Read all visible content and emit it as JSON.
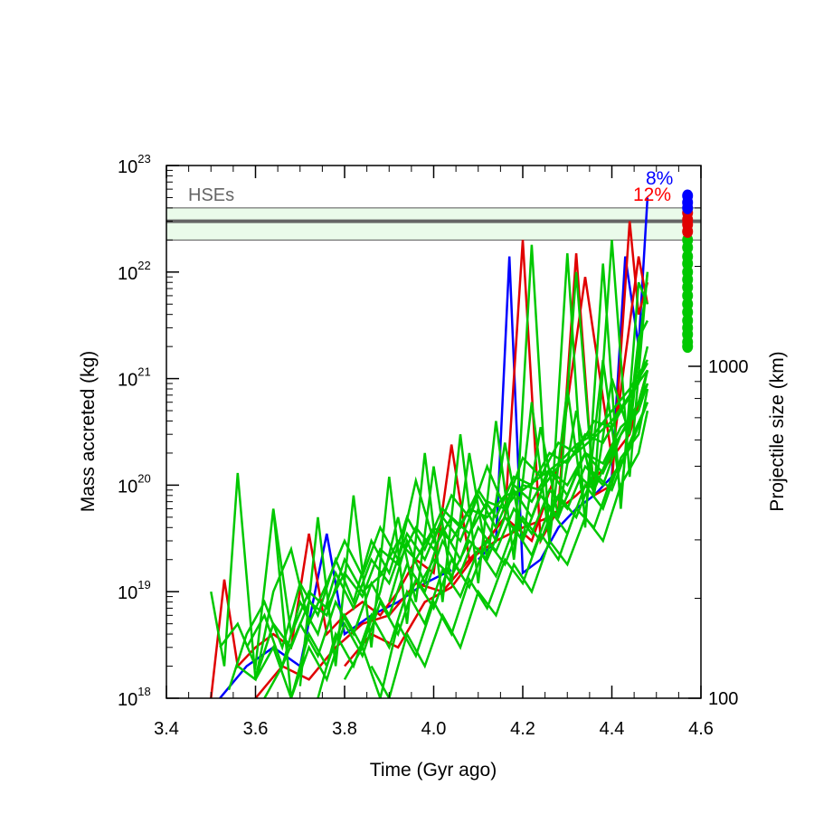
{
  "chart_data": {
    "type": "line",
    "title": "",
    "xlabel": "Time (Gyr ago)",
    "ylabel": "Mass accreted (kg)",
    "y2label": "Projectile size (km)",
    "xlim": [
      3.4,
      4.6
    ],
    "ylim": [
      1e+18,
      1e+23
    ],
    "yscale": "log",
    "x_ticks": [
      "3.4",
      "3.6",
      "3.8",
      "4.0",
      "4.2",
      "4.4",
      "4.6"
    ],
    "y_ticks": [
      {
        "base": "10",
        "exp": "18"
      },
      {
        "base": "10",
        "exp": "19"
      },
      {
        "base": "10",
        "exp": "20"
      },
      {
        "base": "10",
        "exp": "21"
      },
      {
        "base": "10",
        "exp": "22"
      },
      {
        "base": "10",
        "exp": "23"
      }
    ],
    "y2_ticks": [
      "100",
      "1000"
    ],
    "grid": false,
    "hse_band": {
      "label": "HSEs",
      "value": 3e+22,
      "low": 2e+22,
      "high": 4e+22,
      "line_color": "#666666",
      "fill_color": "#eafbea"
    },
    "annotations": [
      {
        "text": "8%",
        "color": "#0000ff"
      },
      {
        "text": "12%",
        "color": "#ff0000"
      }
    ],
    "series_colors": {
      "blue": "#0000ff",
      "red": "#e00000",
      "green": "#00c800"
    },
    "end_markers": {
      "x": 4.57,
      "blue": [
        5.2e+22,
        4.5e+22,
        4e+22
      ],
      "red": [
        3.6e+22,
        3.1e+22,
        2.8e+22,
        2.4e+22
      ],
      "green": [
        2e+22,
        1.7e+22,
        1.4e+22,
        1.2e+22,
        1e+22,
        8.5e+21,
        7.2e+21,
        6e+21,
        5e+21,
        4.2e+21,
        3.5e+21,
        3e+21,
        2.6e+21,
        2.2e+21,
        2e+21
      ]
    },
    "series": [
      {
        "group": "blue",
        "x": [
          4.1,
          4.14,
          4.17,
          4.2,
          4.24,
          4.28,
          4.32,
          4.36,
          4.4,
          4.43,
          4.46,
          4.48
        ],
        "y": [
          2e+19,
          3e+19,
          1.4e+22,
          1.5e+19,
          2e+19,
          4e+19,
          6e+19,
          8e+19,
          1.2e+20,
          1.4e+22,
          2e+21,
          5e+22
        ]
      },
      {
        "group": "blue",
        "x": [
          3.52,
          3.58,
          3.64,
          3.7,
          3.76,
          3.8,
          3.86,
          3.92,
          3.98,
          4.04
        ],
        "y": [
          1e+18,
          2e+18,
          3e+18,
          2e+18,
          3.5e+19,
          4e+18,
          6e+18,
          8e+18,
          1.2e+19,
          1.6e+19
        ]
      },
      {
        "group": "red",
        "x": [
          3.5,
          3.53,
          3.56,
          3.6,
          3.64,
          3.68,
          3.72,
          3.76,
          3.8,
          3.84,
          3.88,
          3.92,
          3.96,
          4.0,
          4.04,
          4.08,
          4.12,
          4.16,
          4.2,
          4.24,
          4.28,
          4.32,
          4.36,
          4.4,
          4.44,
          4.46,
          4.48
        ],
        "y": [
          1e+18,
          1.3e+19,
          2e+18,
          3e+18,
          4e+18,
          3e+18,
          3.5e+19,
          4e+18,
          6e+18,
          8e+18,
          6e+18,
          1e+19,
          2e+19,
          1.5e+19,
          2.4e+20,
          2e+19,
          3e+19,
          5e+19,
          2e+22,
          3e+19,
          6e+19,
          1.5e+22,
          8e+19,
          1e+20,
          3e+22,
          4e+21,
          8e+21
        ]
      },
      {
        "group": "red",
        "x": [
          3.6,
          3.66,
          3.72,
          3.78,
          3.84,
          3.9,
          3.96,
          4.02,
          4.08,
          4.14,
          4.2,
          4.26,
          4.32,
          4.38,
          4.44,
          4.48
        ],
        "y": [
          1e+18,
          2e+18,
          1.5e+18,
          3e+18,
          5e+18,
          6e+18,
          1.2e+19,
          1e+19,
          2e+19,
          3e+19,
          4e+19,
          5e+19,
          8e+19,
          1.4e+20,
          3e+20,
          1.2e+21
        ]
      },
      {
        "group": "red",
        "x": [
          3.8,
          3.86,
          3.92,
          3.98,
          4.04,
          4.1,
          4.16,
          4.22,
          4.28,
          4.34,
          4.4,
          4.46,
          4.48
        ],
        "y": [
          2e+18,
          4e+18,
          3e+18,
          8e+18,
          1.1e+19,
          2.4e+19,
          5e+19,
          3e+19,
          1.5e+20,
          9e+21,
          1.8e+20,
          1.4e+22,
          5e+21
        ]
      },
      {
        "group": "green",
        "x": [
          3.5,
          3.53,
          3.56,
          3.6,
          3.64,
          3.68,
          3.72,
          3.76,
          3.8,
          3.84,
          3.88,
          3.92,
          3.96,
          4.0,
          4.04,
          4.08,
          4.12,
          4.16,
          4.2,
          4.24,
          4.28,
          4.32,
          4.36,
          4.4,
          4.44,
          4.48
        ],
        "y": [
          1e+19,
          2e+18,
          1.3e+20,
          1.5e+18,
          5e+18,
          3e+18,
          8e+18,
          6e+18,
          2e+19,
          1e+19,
          1.4e+19,
          3e+19,
          2e+19,
          4e+19,
          3e+19,
          6e+19,
          5e+19,
          8e+19,
          9e+19,
          1.2e+20,
          1.6e+20,
          2.4e+20,
          3e+20,
          5e+20,
          8e+20,
          1.5e+21
        ]
      },
      {
        "group": "green",
        "x": [
          3.52,
          3.56,
          3.6,
          3.64,
          3.68,
          3.72,
          3.76,
          3.8,
          3.84,
          3.88,
          3.92,
          3.96,
          4.0,
          4.04,
          4.08,
          4.12,
          4.16,
          4.2,
          4.24,
          4.28,
          4.32,
          4.36,
          4.4,
          4.44,
          4.48
        ],
        "y": [
          3e+18,
          5e+18,
          2e+18,
          6e+19,
          4e+18,
          1e+19,
          7e+18,
          1.5e+19,
          9e+18,
          2.5e+19,
          1.8e+19,
          4e+19,
          2.5e+19,
          5e+19,
          3.5e+19,
          7e+19,
          6e+19,
          1e+20,
          9e+19,
          1.5e+20,
          2e+20,
          2.8e+20,
          4e+20,
          7e+20,
          1.2e+21
        ]
      },
      {
        "group": "green",
        "x": [
          3.54,
          3.58,
          3.62,
          3.66,
          3.7,
          3.74,
          3.78,
          3.82,
          3.86,
          3.9,
          3.94,
          3.98,
          4.02,
          4.06,
          4.1,
          4.14,
          4.18,
          4.22,
          4.26,
          4.3,
          4.34,
          4.38,
          4.42,
          4.46,
          4.48
        ],
        "y": [
          1.2e+18,
          4e+18,
          8e+18,
          3e+18,
          1.2e+19,
          6e+18,
          2e+19,
          8e+18,
          3e+19,
          1.5e+19,
          5e+19,
          2.5e+19,
          6e+19,
          4e+19,
          9e+19,
          5e+19,
          1.2e+20,
          1e+20,
          2e+20,
          1.6e+20,
          3e+20,
          2.5e+20,
          5e+20,
          9e+20,
          2e+21
        ]
      },
      {
        "group": "green",
        "x": [
          3.56,
          3.6,
          3.64,
          3.68,
          3.72,
          3.76,
          3.8,
          3.84,
          3.88,
          3.92,
          3.96,
          4.0,
          4.04,
          4.08,
          4.12,
          4.16,
          4.2,
          4.24,
          4.28,
          4.32,
          4.36,
          4.4,
          4.44,
          4.48
        ],
        "y": [
          2e+18,
          1.5e+18,
          1e+19,
          2.5e+19,
          5e+18,
          1.2e+19,
          3e+19,
          1.4e+19,
          4e+19,
          2e+19,
          1.1e+20,
          3e+19,
          8e+19,
          5e+19,
          1.5e+20,
          6e+19,
          1.8e+20,
          1.2e+20,
          2.5e+20,
          2e+20,
          4e+20,
          3.5e+20,
          7e+20,
          1.4e+21
        ]
      },
      {
        "group": "green",
        "x": [
          3.58,
          3.62,
          3.66,
          3.7,
          3.74,
          3.78,
          3.82,
          3.86,
          3.9,
          3.94,
          3.98,
          4.02,
          4.06,
          4.1,
          4.14,
          4.18,
          4.22,
          4.26,
          4.3,
          4.34,
          4.38,
          4.42,
          4.46,
          4.48
        ],
        "y": [
          3e+18,
          6e+18,
          2e+18,
          8e+18,
          4e+18,
          1.5e+19,
          7e+18,
          2e+19,
          1.2e+19,
          3.5e+19,
          2e+19,
          5e+19,
          3e+19,
          8e+19,
          4e+19,
          1e+20,
          7e+19,
          1.4e+20,
          1e+20,
          2e+20,
          1.6e+20,
          3.5e+20,
          5e+20,
          9e+20
        ]
      },
      {
        "group": "green",
        "x": [
          3.6,
          3.64,
          3.68,
          3.72,
          3.76,
          3.8,
          3.84,
          3.88,
          3.92,
          3.96,
          4.0,
          4.04,
          4.08,
          4.12,
          4.16,
          4.2,
          4.24,
          4.28,
          4.32,
          4.36,
          4.4,
          4.44,
          4.48
        ],
        "y": [
          1.5e+18,
          3e+18,
          1e+18,
          4e+18,
          2e+18,
          6e+18,
          3e+18,
          1e+19,
          5e+19,
          8e+18,
          1.5e+20,
          1.2e+19,
          2e+20,
          2e+19,
          2.5e+20,
          3e+19,
          3.5e+20,
          5e+19,
          5e+20,
          8e+19,
          1e+21,
          3e+20,
          1e+22
        ]
      },
      {
        "group": "green",
        "x": [
          3.62,
          3.66,
          3.7,
          3.74,
          3.78,
          3.82,
          3.86,
          3.9,
          3.94,
          3.98,
          4.02,
          4.06,
          4.1,
          4.14,
          4.18,
          4.22,
          4.26,
          4.3,
          4.34,
          4.38,
          4.42,
          4.46,
          4.48
        ],
        "y": [
          1e+18,
          2e+18,
          5e+18,
          2.5e+18,
          8e+18,
          4e+18,
          1.2e+19,
          6e+18,
          1.8e+19,
          1e+19,
          3e+19,
          1.5e+19,
          4e+19,
          2.4e+19,
          6e+19,
          3.5e+19,
          9e+19,
          6e+19,
          1.5e+20,
          1e+20,
          3e+20,
          5e+20,
          1.2e+21
        ]
      },
      {
        "group": "green",
        "x": [
          3.64,
          3.68,
          3.72,
          3.76,
          3.8,
          3.84,
          3.88,
          3.92,
          3.96,
          4.0,
          4.04,
          4.08,
          4.12,
          4.16,
          4.2,
          4.24,
          4.28,
          4.32,
          4.36,
          4.4,
          4.44,
          4.48
        ],
        "y": [
          6e+19,
          1e+18,
          3e+18,
          1.5e+18,
          5e+18,
          2.5e+18,
          8e+18,
          4e+18,
          1.3e+19,
          7e+18,
          2e+19,
          1.1e+19,
          3e+19,
          1.8e+19,
          5e+19,
          3e+19,
          8e+19,
          5e+19,
          1.3e+20,
          9e+19,
          2.5e+20,
          6e+20
        ]
      },
      {
        "group": "green",
        "x": [
          3.7,
          3.74,
          3.78,
          3.82,
          3.86,
          3.9,
          3.94,
          3.98,
          4.02,
          4.06,
          4.1,
          4.14,
          4.18,
          4.22,
          4.26,
          4.3,
          4.34,
          4.38,
          4.42,
          4.46,
          4.48
        ],
        "y": [
          1.3e+18,
          5e+19,
          2e+18,
          8e+19,
          3e+18,
          1.2e+20,
          5e+18,
          2e+20,
          8e+18,
          3e+20,
          1.2e+19,
          4e+20,
          2e+19,
          6e+20,
          3e+19,
          8e+20,
          5e+19,
          1.5e+21,
          8e+19,
          2.4e+21,
          3.5e+21
        ]
      },
      {
        "group": "green",
        "x": [
          3.74,
          3.78,
          3.82,
          3.86,
          3.9,
          3.94,
          3.98,
          4.02,
          4.06,
          4.1,
          4.14,
          4.18,
          4.22,
          4.26,
          4.3,
          4.34,
          4.38,
          4.42,
          4.46,
          4.48
        ],
        "y": [
          1e+18,
          4e+18,
          2e+18,
          6e+18,
          3e+18,
          1e+19,
          5e+18,
          1.6e+19,
          9e+18,
          2.5e+19,
          1.4e+19,
          4e+19,
          2.2e+19,
          6e+19,
          3.5e+19,
          1e+20,
          6e+19,
          1.8e+20,
          3e+20,
          8e+20
        ]
      },
      {
        "group": "green",
        "x": [
          3.8,
          3.84,
          3.88,
          3.92,
          3.96,
          4.0,
          4.04,
          4.08,
          4.12,
          4.16,
          4.2,
          4.24,
          4.28,
          4.32,
          4.36,
          4.4,
          4.44,
          4.48
        ],
        "y": [
          1.5e+18,
          3e+18,
          1e+18,
          5e+18,
          2.5e+18,
          8e+18,
          4e+18,
          1.3e+19,
          7e+18,
          2e+19,
          1.2e+19,
          3.5e+19,
          2e+19,
          6e+19,
          4e+19,
          1.2e+20,
          2.2e+20,
          6e+20
        ]
      },
      {
        "group": "green",
        "x": [
          3.86,
          3.9,
          3.94,
          3.98,
          4.02,
          4.06,
          4.1,
          4.14,
          4.18,
          4.22,
          4.26,
          4.3,
          4.34,
          4.38,
          4.42,
          4.46,
          4.48
        ],
        "y": [
          2e+18,
          1e+18,
          4e+18,
          2e+18,
          6e+18,
          3e+18,
          1e+19,
          6e+18,
          1.8e+19,
          1e+19,
          3e+19,
          1.8e+19,
          5e+19,
          3e+19,
          1e+20,
          2e+20,
          5e+20
        ]
      },
      {
        "group": "green",
        "x": [
          3.9,
          3.94,
          3.98,
          4.02,
          4.06,
          4.1,
          4.14,
          4.18,
          4.22,
          4.26,
          4.3,
          4.34,
          4.38,
          4.42,
          4.46,
          4.48
        ],
        "y": [
          8e+18,
          3e+19,
          1.2e+19,
          4e+19,
          2e+19,
          6e+19,
          3e+19,
          9e+19,
          5e+19,
          1.4e+20,
          8e+19,
          2e+20,
          1.3e+20,
          3e+20,
          6e+20,
          1.2e+21
        ]
      },
      {
        "group": "green",
        "x": [
          3.96,
          4.0,
          4.04,
          4.08,
          4.12,
          4.16,
          4.2,
          4.24,
          4.28,
          4.32,
          4.36,
          4.4,
          4.44,
          4.48
        ],
        "y": [
          1e+19,
          2e+19,
          1.4e+19,
          3e+19,
          2e+19,
          5e+19,
          3e+19,
          8e+19,
          5e+19,
          1.3e+20,
          9e+19,
          2.2e+20,
          4e+20,
          9e+20
        ]
      },
      {
        "group": "green",
        "x": [
          4.18,
          4.22,
          4.26,
          4.3,
          4.34,
          4.38,
          4.42,
          4.46,
          4.48
        ],
        "y": [
          2e+19,
          1.8e+22,
          3e+19,
          1.5e+22,
          4e+19,
          1.2e+22,
          6e+19,
          8e+21,
          5e+21
        ]
      },
      {
        "group": "green",
        "x": [
          4.28,
          4.32,
          4.36,
          4.4,
          4.44,
          4.48
        ],
        "y": [
          5e+19,
          1e+22,
          8e+19,
          2e+22,
          1.2e+20,
          1e+22
        ]
      }
    ]
  }
}
